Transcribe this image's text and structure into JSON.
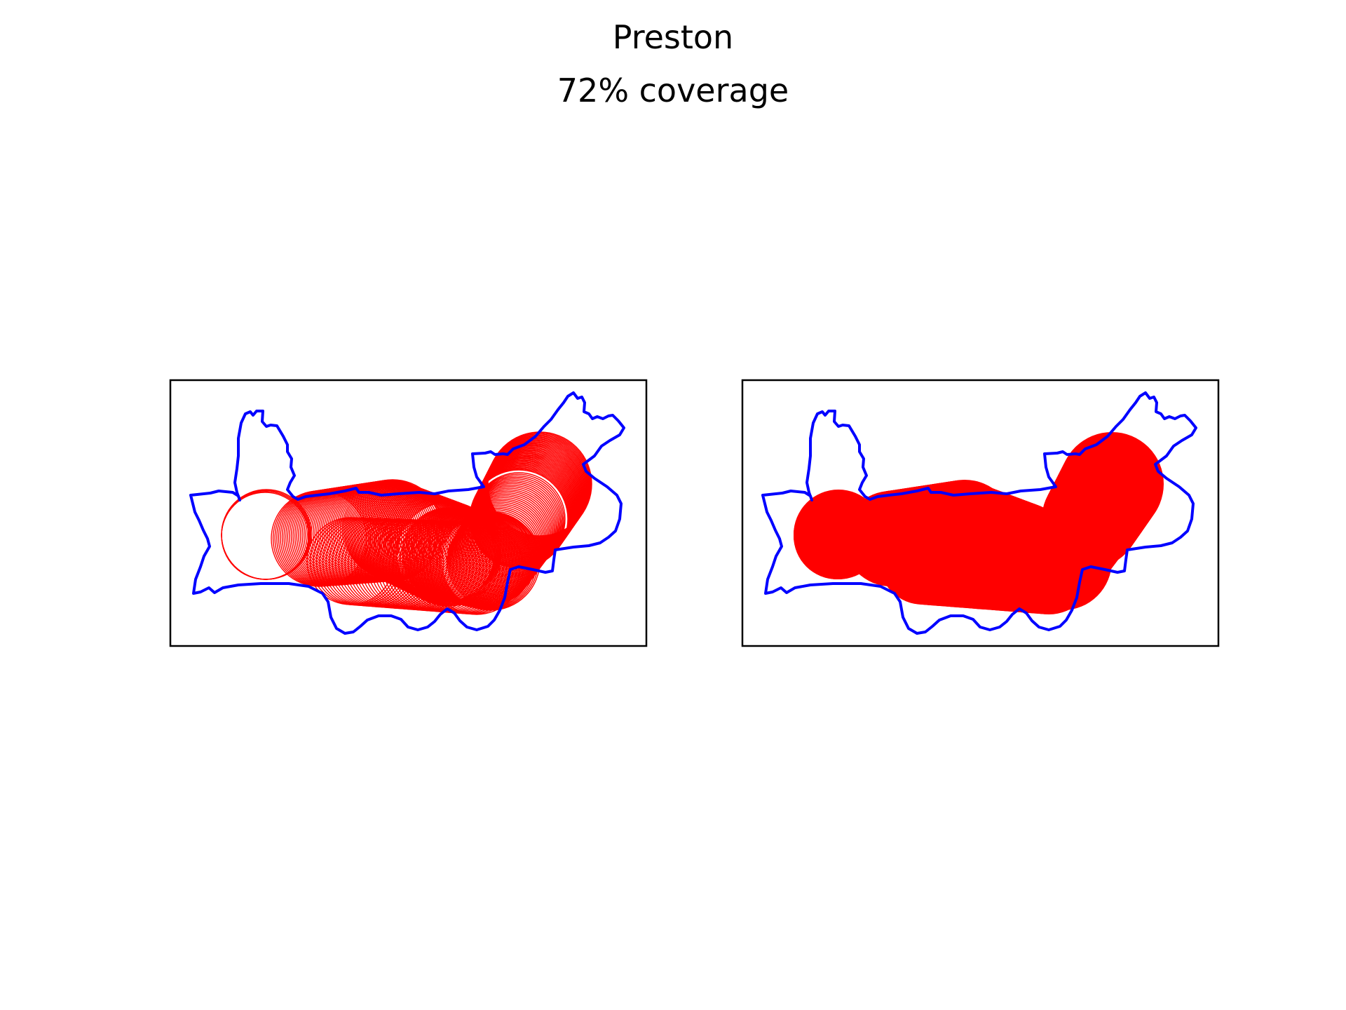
{
  "figure": {
    "title": "Preston",
    "subtitle": "72% coverage"
  },
  "colors": {
    "boundary": "#0000ff",
    "coverage": "#ff0000",
    "frame": "#000000",
    "background": "#ffffff"
  },
  "panels": [
    {
      "id": "left",
      "style": "circle outlines"
    },
    {
      "id": "right",
      "style": "filled union"
    }
  ],
  "coverage_percent": 72
}
